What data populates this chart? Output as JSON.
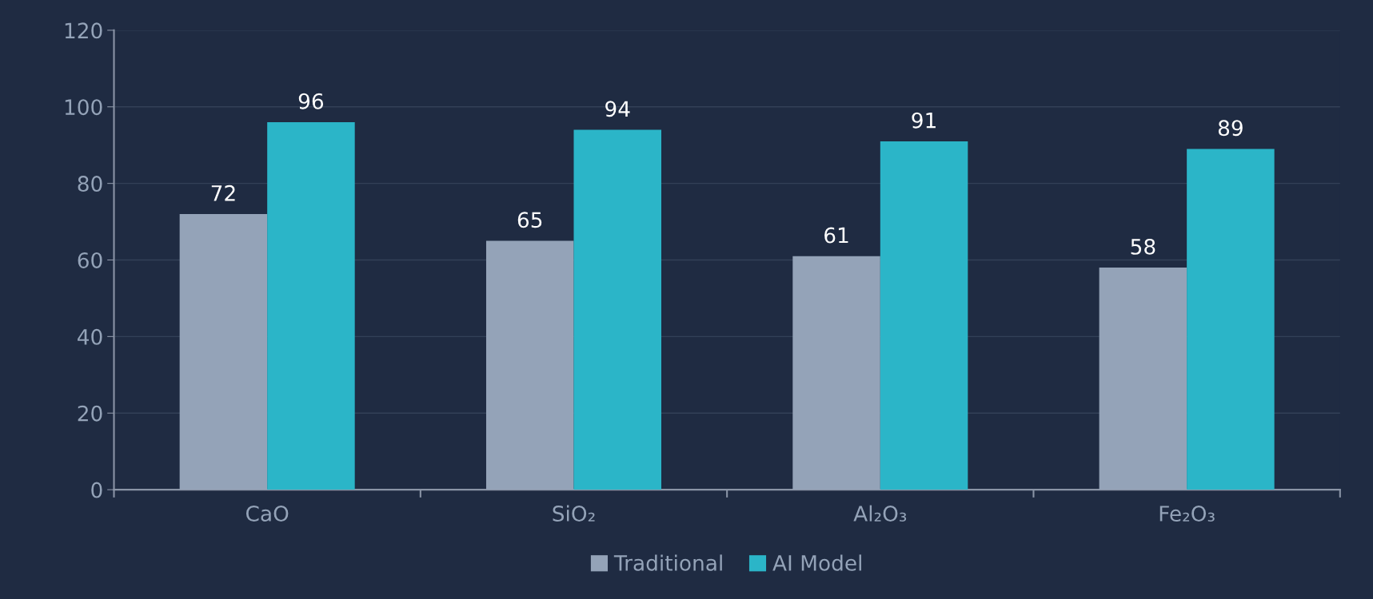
{
  "chart_data": {
    "type": "bar",
    "categories": [
      "CaO",
      "SiO₂",
      "Al₂O₃",
      "Fe₂O₃"
    ],
    "series": [
      {
        "name": "Traditional",
        "color": "#94a3b8",
        "values": [
          72,
          65,
          61,
          58
        ]
      },
      {
        "name": "AI Model",
        "color": "#2bb5c8",
        "values": [
          96,
          94,
          91,
          89
        ]
      }
    ],
    "ylim": [
      0,
      120
    ],
    "yticks": [
      0,
      20,
      40,
      60,
      80,
      100,
      120
    ],
    "grid": "y",
    "legend": "bottom",
    "data_labels": true
  }
}
